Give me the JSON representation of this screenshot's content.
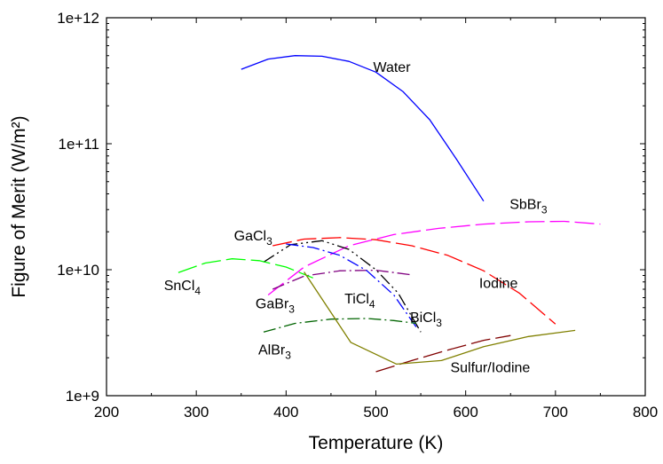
{
  "chart_data": {
    "type": "line",
    "xlabel": "Temperature (K)",
    "ylabel": "Figure of Merit (W/m²)",
    "xlim": [
      200,
      800
    ],
    "ylim": [
      1000000000.0,
      1000000000000.0
    ],
    "y_scale": "log",
    "grid": false,
    "legend": "none",
    "x_ticks": [
      200,
      300,
      400,
      500,
      600,
      700,
      800
    ],
    "x_tick_labels": [
      "200",
      "300",
      "400",
      "500",
      "600",
      "700",
      "800"
    ],
    "y_ticks": [
      1000000000.0,
      10000000000.0,
      100000000000.0,
      1000000000000.0
    ],
    "y_tick_labels": [
      "1e+9",
      "1e+10",
      "1e+11",
      "1e+12"
    ],
    "series": [
      {
        "name": "Water",
        "color": "#0000ff",
        "dash": "solid",
        "x": [
          350,
          380,
          410,
          440,
          470,
          500,
          530,
          560,
          590,
          620
        ],
        "y": [
          390000000000.0,
          470000000000.0,
          500000000000.0,
          495000000000.0,
          450000000000.0,
          370000000000.0,
          260000000000.0,
          155000000000.0,
          75000000000.0,
          35000000000.0
        ],
        "label": {
          "x": 497,
          "y": 410000000000.0
        }
      },
      {
        "name": "SbBr3",
        "color": "#ff00ff",
        "dash": "long",
        "x": [
          380,
          420,
          470,
          520,
          570,
          620,
          670,
          710,
          750
        ],
        "y": [
          6300000000.0,
          10500000000.0,
          15500000000.0,
          19000000000.0,
          21300000000.0,
          23000000000.0,
          24000000000.0,
          24200000000.0,
          23000000000.0
        ],
        "label": {
          "x": 649,
          "y": 33500000000.0
        }
      },
      {
        "name": "Iodine",
        "color": "#ff0000",
        "dash": "long",
        "x": [
          385,
          420,
          460,
          500,
          540,
          580,
          620,
          660,
          700
        ],
        "y": [
          15500000000.0,
          17500000000.0,
          18000000000.0,
          17300000000.0,
          15500000000.0,
          13000000000.0,
          9800000000.0,
          6500000000.0,
          3700000000.0
        ],
        "label": {
          "x": 615,
          "y": 7900000000.0
        }
      },
      {
        "name": "GaCl3",
        "color": "#000000",
        "dash": "dashdotdot",
        "x": [
          375,
          405,
          440,
          470,
          500,
          525,
          550
        ],
        "y": [
          11500000000.0,
          15800000000.0,
          17000000000.0,
          14500000000.0,
          10000000000.0,
          6500000000.0,
          3200000000.0
        ],
        "label": {
          "x": 342,
          "y": 18800000000.0
        }
      },
      {
        "name": "GaBr3",
        "color": "#800080",
        "dash": "dashdot",
        "x": [
          385,
          420,
          460,
          500,
          540
        ],
        "y": [
          7000000000.0,
          8900000000.0,
          9800000000.0,
          9900000000.0,
          9100000000.0
        ],
        "label": {
          "x": 366,
          "y": 5450000000.0
        }
      },
      {
        "name": "TiCl4",
        "color": "#0000ff",
        "dash": "dashdot",
        "x": [
          400,
          430,
          460,
          490,
          520,
          545
        ],
        "y": [
          16000000000.0,
          15000000000.0,
          13000000000.0,
          9800000000.0,
          6300000000.0,
          3500000000.0
        ],
        "label": {
          "x": 465,
          "y": 5950000000.0
        }
      },
      {
        "name": "SnCl4",
        "color": "#00ff00",
        "dash": "long",
        "x": [
          280,
          310,
          340,
          370,
          400,
          430
        ],
        "y": [
          9500000000.0,
          11300000000.0,
          12200000000.0,
          11800000000.0,
          10500000000.0,
          8600000000.0
        ],
        "label": {
          "x": 264,
          "y": 7600000000.0
        }
      },
      {
        "name": "AlBr3",
        "color": "#006400",
        "dash": "dashdot",
        "x": [
          375,
          410,
          450,
          490,
          520,
          545
        ],
        "y": [
          3200000000.0,
          3750000000.0,
          4050000000.0,
          4100000000.0,
          3950000000.0,
          3750000000.0
        ],
        "label": {
          "x": 369,
          "y": 2350000000.0
        }
      },
      {
        "name": "BiCl3",
        "color": "#800000",
        "dash": "long",
        "x": [
          500,
          540,
          580,
          620,
          650
        ],
        "y": [
          1550000000.0,
          1900000000.0,
          2300000000.0,
          2750000000.0,
          3000000000.0
        ],
        "label": {
          "x": 538,
          "y": 4250000000.0
        }
      },
      {
        "name": "Sulfur/Iodine",
        "color": "#808000",
        "dash": "solid",
        "x": [
          420,
          472,
          523,
          573,
          620,
          670,
          722
        ],
        "y": [
          9600000000.0,
          2650000000.0,
          1780000000.0,
          1900000000.0,
          2450000000.0,
          2950000000.0,
          3300000000.0
        ],
        "label": {
          "x": 583,
          "y": 1700000000.0
        }
      }
    ]
  }
}
